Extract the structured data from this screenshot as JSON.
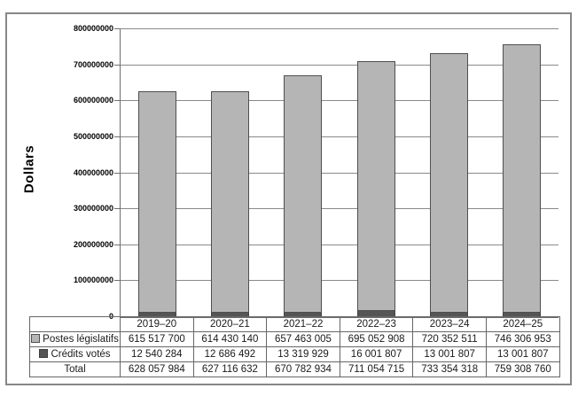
{
  "chart_data": {
    "type": "bar",
    "stacked": true,
    "title": "",
    "ylabel": "Dollars",
    "xlabel": "",
    "categories": [
      "2019–20",
      "2020–21",
      "2021–22",
      "2022–23",
      "2023–24",
      "2024–25"
    ],
    "series": [
      {
        "name": "Postes législatifs",
        "color": "#b5b5b5",
        "values": [
          615517700,
          614430140,
          657463005,
          695052908,
          720352511,
          746306953
        ]
      },
      {
        "name": "Crédits votés",
        "color": "#555555",
        "values": [
          12540284,
          12686492,
          13319929,
          16001807,
          13001807,
          13001807
        ]
      }
    ],
    "stack_order_bottom_to_top": [
      "Crédits votés",
      "Postes législatifs"
    ],
    "totals": [
      628057984,
      627116632,
      670782934,
      711054715,
      733354318,
      759308760
    ],
    "ylim": [
      0,
      800000000
    ],
    "ytick_step": 100000000,
    "yticks": [
      "0",
      "100000000",
      "200000000",
      "300000000",
      "400000000",
      "500000000",
      "600000000",
      "700000000",
      "800000000"
    ],
    "grid": "horizontal-major",
    "legend_position": "table-left-keys"
  },
  "table": {
    "years": [
      "2019–20",
      "2020–21",
      "2021–22",
      "2022–23",
      "2023–24",
      "2024–25"
    ],
    "rows": [
      {
        "label": "Postes législatifs",
        "values": [
          "615 517 700",
          "614 430 140",
          "657 463 005",
          "695 052 908",
          "720 352 511",
          "746 306 953"
        ]
      },
      {
        "label": "Crédits votés",
        "values": [
          "12 540 284",
          "12 686 492",
          "13 319 929",
          "16 001 807",
          "13 001 807",
          "13 001 807"
        ]
      },
      {
        "label": "Total",
        "values": [
          "628 057 984",
          "627 116 632",
          "670 782 934",
          "711 054 715",
          "733 354 318",
          "759 308 760"
        ]
      }
    ]
  },
  "colors": {
    "bar_fill": "#b5b5b5",
    "bar_border": "#4f4f4f",
    "dark_fill": "#555555",
    "gridline": "#8a8a8a",
    "axis": "#6e6e6e",
    "frame_border": "#878787",
    "table_border": "#666666",
    "text": "#1a1a1a"
  }
}
